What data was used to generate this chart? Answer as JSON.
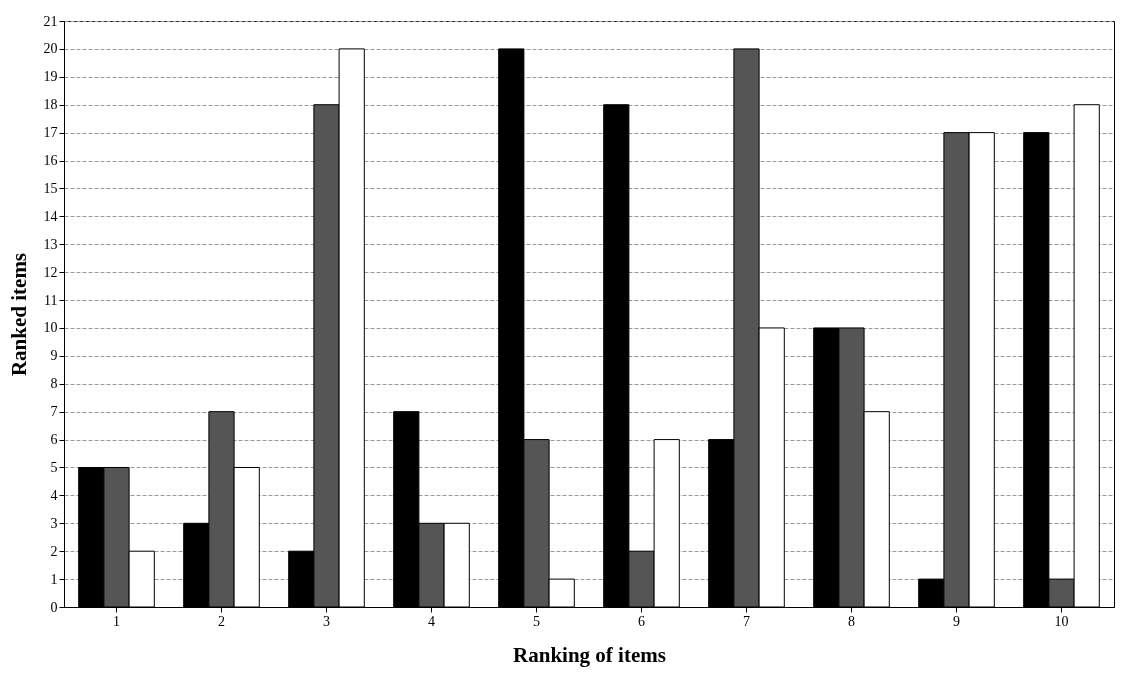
{
  "chart_data": {
    "type": "bar",
    "xlabel": "Ranking of items",
    "ylabel": "Ranked items",
    "categories": [
      "1",
      "2",
      "3",
      "4",
      "5",
      "6",
      "7",
      "8",
      "9",
      "10"
    ],
    "series": [
      {
        "color": "#000000",
        "values": [
          5,
          3,
          2,
          7,
          20,
          18,
          6,
          10,
          1,
          17
        ]
      },
      {
        "color": "#555555",
        "values": [
          5,
          7,
          18,
          3,
          6,
          2,
          20,
          10,
          17,
          1
        ]
      },
      {
        "color": "#ffffff",
        "values": [
          2,
          5,
          20,
          3,
          1,
          6,
          10,
          7,
          17,
          18
        ]
      }
    ],
    "ylim": [
      0,
      21
    ],
    "yticks": [
      0,
      1,
      2,
      3,
      4,
      5,
      6,
      7,
      8,
      9,
      10,
      11,
      12,
      13,
      14,
      15,
      16,
      17,
      18,
      19,
      20,
      21
    ],
    "grid": "y",
    "legend": false
  }
}
